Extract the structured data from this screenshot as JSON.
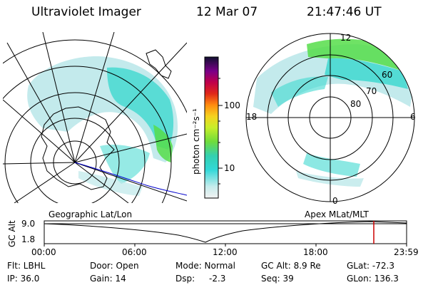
{
  "header": {
    "instrument": "Ultraviolet Imager",
    "date": "12 Mar 07",
    "time": "21:47:46 UT"
  },
  "colorbar": {
    "unit_label": "photon cm⁻²s⁻¹",
    "ticks": [
      "100",
      "10"
    ]
  },
  "polar_plot": {
    "mlt_labels": {
      "top": "12",
      "left": "18",
      "right": "6",
      "bottom": "0"
    },
    "lat_labels": [
      "60",
      "70",
      "80"
    ]
  },
  "bottom_labels": {
    "left": "Geographic Lat/Lon",
    "right": "Apex MLat/MLT"
  },
  "alt_panel": {
    "axis_label": "GC Alt",
    "y_ticks": [
      "9.0",
      "1.8"
    ],
    "time_ticks": [
      "00:00",
      "06:00",
      "12:00",
      "18:00",
      "23:59"
    ],
    "current_time_marker": "21:47:46"
  },
  "info": {
    "flt": "Flt: LBHL",
    "ip": "IP: 36.0",
    "door": "Door: Open",
    "gain": "Gain: 14",
    "mode": "Mode: Normal",
    "dsp": "Dsp:",
    "dsp_value": "-2.3",
    "gc_alt": "GC Alt: 8.9 Re",
    "seq": "Seq: 39",
    "glat": "GLat: -72.3",
    "glon": "GLon: 136.3"
  },
  "colors": {
    "low": "#bde8ea",
    "mid": "#3fd8d0",
    "high": "#56dd4a",
    "coast": "#000000",
    "track": "#0000cc",
    "marker": "#cc0000"
  }
}
